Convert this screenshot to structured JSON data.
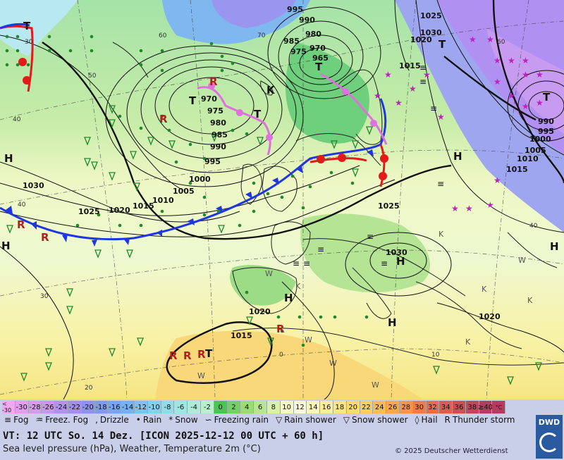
{
  "map": {
    "pressure_labels": [
      "995",
      "990",
      "985",
      "980",
      "975",
      "970",
      "965",
      "1015",
      "1020",
      "1025",
      "1030",
      "970",
      "975",
      "980",
      "985",
      "990",
      "995",
      "1000",
      "1005",
      "1010",
      "1015",
      "1020",
      "1025",
      "1030",
      "1000",
      "995",
      "990",
      "1005",
      "1010",
      "1015",
      "1030",
      "1025",
      "1020",
      "1015",
      "1020"
    ],
    "centers": [
      "T",
      "T",
      "T",
      "T",
      "T",
      "H",
      "H",
      "H",
      "H",
      "H",
      "H",
      "H",
      "T",
      "T",
      "K"
    ],
    "temp_labels": [
      "60",
      "70",
      "60",
      "50",
      "40",
      "40",
      "30",
      "20",
      "40",
      "0",
      "10",
      "30"
    ],
    "weather_letters": [
      "W",
      "W",
      "W",
      "W",
      "W",
      "K",
      "K",
      "K",
      "K",
      "K",
      "W"
    ]
  },
  "legend": {
    "unit": "°C",
    "scale_values": [
      "< -30",
      "-30",
      "-28",
      "-26",
      "-24",
      "-22",
      "-20",
      "-18",
      "-16",
      "-14",
      "-12",
      "-10",
      "-8",
      "-6",
      "-4",
      "-2",
      "0",
      "2",
      "4",
      "6",
      "8",
      "10",
      "12",
      "14",
      "16",
      "18",
      "20",
      "22",
      "24",
      "26",
      "28",
      "30",
      "32",
      "34",
      "36",
      "38",
      "≥40"
    ],
    "scale_colors": [
      "#f2a8f0",
      "#e49ef0",
      "#d89aee",
      "#c896ee",
      "#b690f0",
      "#a48cf2",
      "#8f90f4",
      "#7f98f6",
      "#77a4f6",
      "#74b2f4",
      "#7ac2f2",
      "#84d0ee",
      "#90dcea",
      "#9ee6e2",
      "#acecd8",
      "#b8f0cc",
      "#4cc454",
      "#74d064",
      "#98dc78",
      "#b8e690",
      "#d8f0a8",
      "#f4f8c8",
      "#fafad8",
      "#fcf6b8",
      "#fcee98",
      "#fce680",
      "#fcdc6c",
      "#fcce5c",
      "#fcbc50",
      "#fca848",
      "#fc9444",
      "#f47c44",
      "#ec6a48",
      "#e05a50",
      "#d24c54",
      "#c4445a",
      "#b43c60"
    ],
    "wx_items": [
      {
        "icon": "≡",
        "label": "Fog"
      },
      {
        "icon": "♒",
        "label": "Freez. Fog"
      },
      {
        "icon": ",",
        "label": "Drizzle"
      },
      {
        "icon": "•",
        "label": "Rain"
      },
      {
        "icon": "*",
        "label": "Snow"
      },
      {
        "icon": "∽",
        "label": "Freezing rain"
      },
      {
        "icon": "▽",
        "label": "Rain shower"
      },
      {
        "icon": "▽",
        "label": "Snow shower"
      },
      {
        "icon": "◊",
        "label": "Hail"
      },
      {
        "icon": "R",
        "label": "Thunder storm"
      }
    ],
    "vt": "VT: 12 UTC So.  14 Dez. [ICON 2025-12-12  00 UTC + 60 h]",
    "description": "Sea level pressure (hPa), Weather, Temperature 2m (°C)",
    "copyright": "© 2025 Deutscher Wetterdienst",
    "logo": "DWD",
    "colors": {
      "front_warm": "#e21a1a",
      "front_cold": "#1f36e0",
      "front_occl": "#e070e0",
      "isobar": "#111111"
    }
  }
}
